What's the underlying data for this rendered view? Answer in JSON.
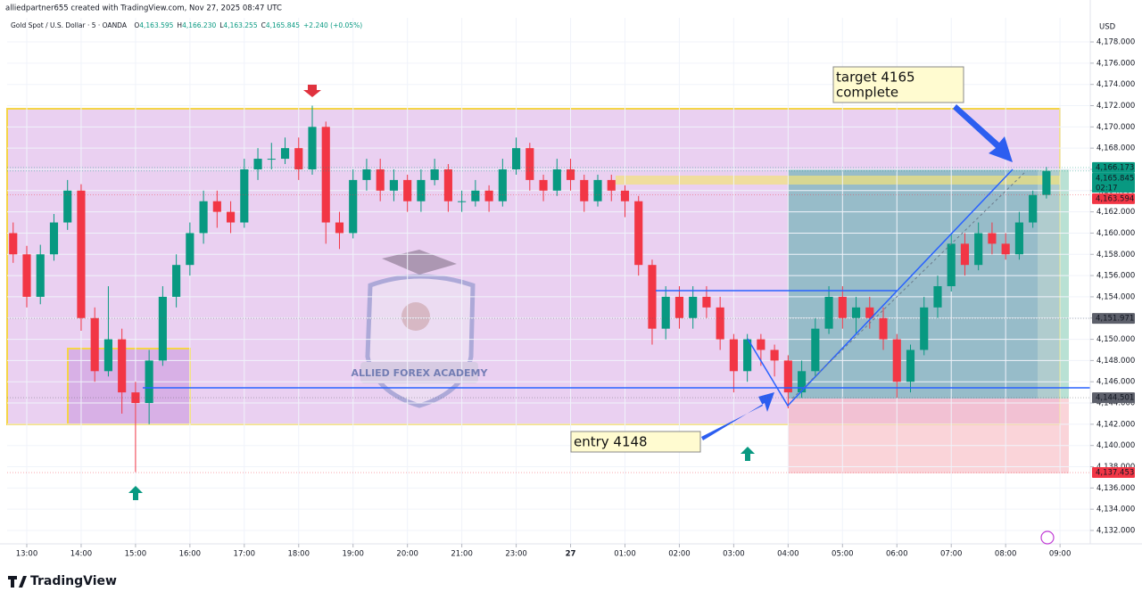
{
  "chart_data": {
    "type": "candlestick",
    "credit": "alliedpartner655 created with TradingView.com, Nov 27, 2025 08:47 UTC",
    "symbol": "Gold Spot / U.S. Dollar · 5 · OANDA",
    "ohlc_legend": [
      {
        "key": "O",
        "value": "4,163.595"
      },
      {
        "key": "H",
        "value": "4,166.230"
      },
      {
        "key": "L",
        "value": "4,163.255"
      },
      {
        "key": "C",
        "value": "4,165.845"
      }
    ],
    "change": "+2.240 (+0.05%)",
    "currency": "USD",
    "up_color": "#089981",
    "down_color": "#f23645",
    "grid": true,
    "xlim": [
      -4.33,
      234.67
    ],
    "xticks": [
      {
        "value": 0,
        "label": "13:00"
      },
      {
        "value": 12,
        "label": "14:00"
      },
      {
        "value": 24,
        "label": "15:00"
      },
      {
        "value": 36,
        "label": "16:00"
      },
      {
        "value": 48,
        "label": "17:00"
      },
      {
        "value": 60,
        "label": "18:00"
      },
      {
        "value": 72,
        "label": "19:00"
      },
      {
        "value": 84,
        "label": "20:00"
      },
      {
        "value": 96,
        "label": "21:00"
      },
      {
        "value": 108,
        "label": "23:00"
      },
      {
        "value": 120,
        "label": "27"
      },
      {
        "value": 132,
        "label": "01:00"
      },
      {
        "value": 144,
        "label": "02:00"
      },
      {
        "value": 156,
        "label": "03:00"
      },
      {
        "value": 168,
        "label": "04:00"
      },
      {
        "value": 180,
        "label": "05:00"
      },
      {
        "value": 192,
        "label": "06:00"
      },
      {
        "value": 204,
        "label": "07:00"
      },
      {
        "value": 216,
        "label": "08:00"
      },
      {
        "value": 228,
        "label": "09:00"
      }
    ],
    "ylim": [
      4130.74,
      4180.27
    ],
    "yticks": [
      {
        "value": 4132,
        "label": "4,132.000"
      },
      {
        "value": 4134,
        "label": "4,134.000"
      },
      {
        "value": 4136,
        "label": "4,136.000"
      },
      {
        "value": 4138,
        "label": "4,138.000"
      },
      {
        "value": 4140,
        "label": "4,140.000"
      },
      {
        "value": 4142,
        "label": "4,142.000"
      },
      {
        "value": 4144,
        "label": "4,144.000"
      },
      {
        "value": 4146,
        "label": "4,146.000"
      },
      {
        "value": 4148,
        "label": "4,148.000"
      },
      {
        "value": 4150,
        "label": "4,150.000"
      },
      {
        "value": 4152,
        "label": "4,152.000"
      },
      {
        "value": 4154,
        "label": "4,154.000"
      },
      {
        "value": 4156,
        "label": "4,156.000"
      },
      {
        "value": 4158,
        "label": "4,158.000"
      },
      {
        "value": 4160,
        "label": "4,160.000"
      },
      {
        "value": 4162,
        "label": "4,162.000"
      },
      {
        "value": 4164,
        "label": "4,164.000"
      },
      {
        "value": 4166,
        "label": "4,166.000"
      },
      {
        "value": 4168,
        "label": "4,168.000"
      },
      {
        "value": 4170,
        "label": "4,170.000"
      },
      {
        "value": 4172,
        "label": "4,172.000"
      },
      {
        "value": 4174,
        "label": "4,174.000"
      },
      {
        "value": 4176,
        "label": "4,176.000"
      },
      {
        "value": 4178,
        "label": "4,178.000"
      }
    ],
    "x": [
      -3,
      0,
      3,
      6,
      9,
      12,
      15,
      18,
      21,
      24,
      27,
      30,
      33,
      36,
      39,
      42,
      45,
      48,
      51,
      54,
      57,
      60,
      63,
      66,
      69,
      72,
      75,
      78,
      81,
      84,
      87,
      90,
      93,
      96,
      99,
      102,
      105,
      108,
      111,
      114,
      117,
      120,
      123,
      126,
      129,
      132,
      135,
      138,
      141,
      144,
      147,
      150,
      153,
      156,
      159,
      162,
      165,
      168,
      171,
      174,
      177,
      180,
      183,
      186,
      189,
      192,
      195,
      198,
      201,
      204,
      207,
      210,
      213,
      216,
      219,
      222,
      225
    ],
    "open": [
      4160,
      4158,
      4154,
      4158,
      4161,
      4164,
      4152,
      4147,
      4150,
      4145,
      4144,
      4148,
      4154,
      4157,
      4160,
      4163,
      4162,
      4161,
      4166,
      4167,
      4167,
      4168,
      4166,
      4170,
      4161,
      4160,
      4165,
      4166,
      4164,
      4165,
      4163,
      4165,
      4166,
      4163,
      4163,
      4164,
      4163,
      4166,
      4168,
      4165,
      4164,
      4166,
      4165,
      4163,
      4165,
      4164,
      4163,
      4157,
      4151,
      4154,
      4152,
      4154,
      4153,
      4150,
      4147,
      4150,
      4149,
      4148,
      4145,
      4147,
      4151,
      4154,
      4152,
      4153,
      4152,
      4150,
      4146,
      4149,
      4153,
      4155,
      4159,
      4157,
      4160,
      4159,
      4158,
      4161,
      4163.595
    ],
    "high": [
      4161,
      4158.8,
      4158.9,
      4161.8,
      4165,
      4164.6,
      4153,
      4155,
      4151,
      4146,
      4149,
      4155,
      4158,
      4161,
      4164,
      4164,
      4163,
      4167,
      4168,
      4168.5,
      4169,
      4169,
      4172,
      4170.5,
      4162,
      4166,
      4167,
      4167,
      4166,
      4165.5,
      4166,
      4167,
      4166.5,
      4164,
      4165,
      4164.5,
      4167,
      4169,
      4168.5,
      4165.5,
      4167,
      4167,
      4165.5,
      4165.5,
      4165.5,
      4164.5,
      4163.5,
      4157.5,
      4155,
      4155,
      4155,
      4155,
      4154,
      4150.5,
      4150.5,
      4150.5,
      4149.5,
      4148.5,
      4148,
      4152,
      4155,
      4155,
      4154,
      4154,
      4153,
      4150.5,
      4149.5,
      4154,
      4156,
      4160,
      4160,
      4161,
      4161,
      4160,
      4162,
      4164,
      4166.23
    ],
    "low": [
      4157.2,
      4153,
      4153.3,
      4157.4,
      4160.3,
      4150.8,
      4146,
      4146.5,
      4143,
      4137.5,
      4142,
      4147.5,
      4153,
      4156,
      4159,
      4160.5,
      4160,
      4160.5,
      4165,
      4166,
      4166.5,
      4165,
      4165.5,
      4159,
      4158.5,
      4159.5,
      4164,
      4163,
      4163,
      4162,
      4162,
      4164.5,
      4162,
      4162,
      4162.5,
      4162,
      4162.5,
      4165.5,
      4164,
      4163,
      4163.5,
      4164,
      4162,
      4162.5,
      4163,
      4161.5,
      4156,
      4149.5,
      4150,
      4151,
      4151,
      4152,
      4149,
      4145,
      4146,
      4147.5,
      4146.5,
      4143.5,
      4144.5,
      4146.5,
      4150.5,
      4151,
      4150.5,
      4151,
      4149,
      4144.5,
      4145,
      4148.5,
      4152,
      4154.5,
      4156,
      4156.5,
      4158,
      4157.5,
      4157.5,
      4160.5,
      4163.255
    ],
    "close": [
      4158,
      4154,
      4158,
      4161,
      4164,
      4152,
      4147,
      4150,
      4145,
      4144,
      4148,
      4154,
      4157,
      4160,
      4163,
      4162,
      4161,
      4166,
      4167,
      4167,
      4168,
      4166,
      4170,
      4161,
      4160,
      4165,
      4166,
      4164,
      4165,
      4163,
      4165,
      4166,
      4163,
      4163,
      4164,
      4163,
      4166,
      4168,
      4165,
      4164,
      4166,
      4165,
      4163,
      4165,
      4164,
      4163,
      4157,
      4151,
      4154,
      4152,
      4154,
      4153,
      4150,
      4147,
      4150,
      4149,
      4148,
      4145,
      4147,
      4151,
      4154,
      4152,
      4153,
      4152,
      4150,
      4146,
      4149,
      4153,
      4155,
      4159,
      4157,
      4160,
      4159,
      4158,
      4161,
      4163.595,
      4165.845
    ],
    "price_labels": [
      {
        "value": 4166.173,
        "label": "4,166.173",
        "color": "#089981"
      },
      {
        "value": 4165.845,
        "label": "4,165.845",
        "color": "#089981"
      },
      {
        "value": 4163.594,
        "label": "4,163.594",
        "color": "#f23645"
      },
      {
        "value": 4151.971,
        "label": "4,151.971",
        "color": "#5d606b"
      },
      {
        "value": 4144.501,
        "label": "4,144.501",
        "color": "#5d606b"
      },
      {
        "value": 4137.453,
        "label": "4,137.453",
        "color": "#f23645"
      }
    ],
    "countdown": "02:17",
    "annotations": {
      "target": [
        "target 4165",
        "complete"
      ],
      "entry": "entry 4148"
    },
    "watermark": "ALLIED FOREX ACADEMY",
    "brand": "TradingView"
  }
}
